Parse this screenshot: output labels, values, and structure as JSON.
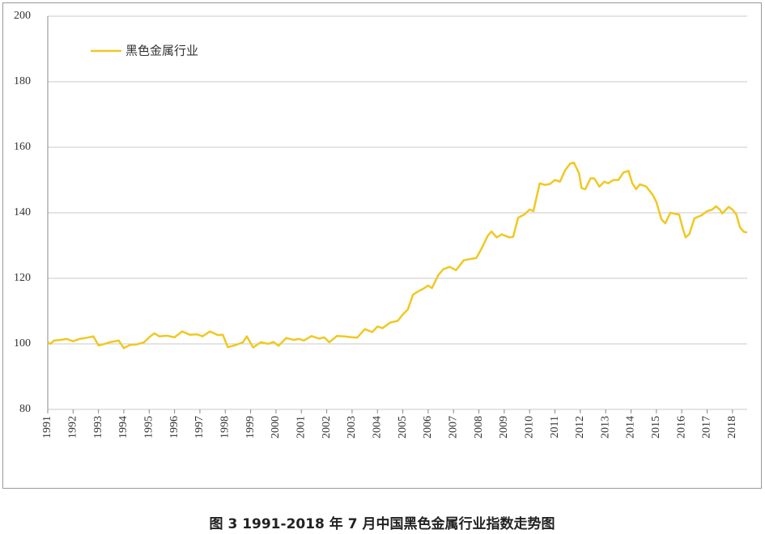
{
  "chart_data": {
    "type": "line",
    "caption": "图 3    1991-2018 年 7 月中国黑色金属行业指数走势图",
    "x": [
      1991.0,
      1991.1,
      1991.25,
      1991.5,
      1991.75,
      1992.0,
      1992.25,
      1992.5,
      1992.8,
      1993.0,
      1993.25,
      1993.5,
      1993.8,
      1994.0,
      1994.25,
      1994.5,
      1994.8,
      1995.0,
      1995.2,
      1995.4,
      1995.7,
      1996.0,
      1996.3,
      1996.6,
      1996.9,
      1997.1,
      1997.4,
      1997.7,
      1997.9,
      1998.1,
      1998.4,
      1998.7,
      1998.85,
      1999.1,
      1999.4,
      1999.7,
      1999.9,
      2000.1,
      2000.4,
      2000.7,
      2000.9,
      2001.1,
      2001.4,
      2001.7,
      2001.9,
      2002.1,
      2002.4,
      2002.7,
      2003.0,
      2003.2,
      2003.5,
      2003.8,
      2004.0,
      2004.2,
      2004.5,
      2004.8,
      2005.0,
      2005.2,
      2005.4,
      2005.6,
      2005.8,
      2006.0,
      2006.15,
      2006.4,
      2006.6,
      2006.85,
      2007.1,
      2007.4,
      2007.6,
      2007.9,
      2008.1,
      2008.35,
      2008.5,
      2008.7,
      2008.9,
      2009.2,
      2009.35,
      2009.55,
      2009.8,
      2010.0,
      2010.15,
      2010.4,
      2010.6,
      2010.8,
      2011.0,
      2011.2,
      2011.4,
      2011.6,
      2011.75,
      2011.95,
      2012.05,
      2012.2,
      2012.4,
      2012.55,
      2012.75,
      2012.95,
      2013.1,
      2013.3,
      2013.5,
      2013.7,
      2013.9,
      2014.05,
      2014.2,
      2014.35,
      2014.6,
      2014.85,
      2015.0,
      2015.2,
      2015.35,
      2015.55,
      2015.9,
      2016.05,
      2016.15,
      2016.3,
      2016.5,
      2016.8,
      2017.0,
      2017.2,
      2017.35,
      2017.5,
      2017.6,
      2017.85,
      2018.0,
      2018.15,
      2018.3,
      2018.45,
      2018.58
    ],
    "series": [
      {
        "name": "黑色金属行业",
        "color": "#f0c823",
        "values": [
          100.5,
          100,
          101,
          101.2,
          101.5,
          100.8,
          101.5,
          101.8,
          102.3,
          99.5,
          100,
          100.6,
          101,
          98.7,
          99.7,
          99.8,
          100.5,
          102,
          103.2,
          102.3,
          102.5,
          102,
          103.8,
          102.8,
          102.9,
          102.3,
          103.8,
          102.7,
          102.8,
          99,
          99.6,
          100.5,
          102.3,
          98.9,
          100.5,
          100,
          100.6,
          99.4,
          101.8,
          101.2,
          101.5,
          101,
          102.4,
          101.6,
          102,
          100.5,
          102.4,
          102.3,
          102,
          101.9,
          104.5,
          103.6,
          105.3,
          104.8,
          106.5,
          107,
          109,
          110.5,
          115,
          116,
          116.8,
          117.8,
          117,
          121,
          122.8,
          123.5,
          122.5,
          125.5,
          125.8,
          126.2,
          129,
          133,
          134.3,
          132.5,
          133.4,
          132.5,
          132.7,
          138.5,
          139.5,
          141,
          140.5,
          149,
          148.5,
          148.8,
          150,
          149.5,
          153,
          155,
          155.3,
          152,
          147.5,
          147.2,
          150.5,
          150.5,
          148,
          149.5,
          149,
          150,
          150,
          152.3,
          152.8,
          149,
          147.2,
          148.7,
          148,
          145.5,
          143.3,
          138,
          136.8,
          140,
          139.4,
          135,
          132.5,
          133.5,
          138.3,
          139.3,
          140.5,
          141,
          142,
          141,
          139.8,
          141.8,
          141,
          139.5,
          135.5,
          134.2,
          134
        ]
      }
    ],
    "xlim": [
      1991,
      2018.58
    ],
    "xticks": [
      1991,
      1992,
      1993,
      1994,
      1995,
      1996,
      1997,
      1998,
      1999,
      2000,
      2001,
      2002,
      2003,
      2004,
      2005,
      2006,
      2007,
      2008,
      2009,
      2010,
      2011,
      2012,
      2013,
      2014,
      2015,
      2016,
      2017,
      2018
    ],
    "ylim": [
      80,
      200
    ],
    "yticks": [
      80,
      100,
      120,
      140,
      160,
      180,
      200
    ],
    "grid": true
  }
}
